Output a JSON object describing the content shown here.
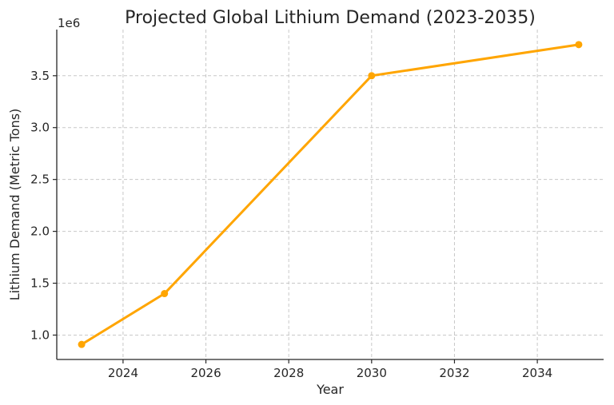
{
  "chart_data": {
    "type": "line",
    "title": "Projected Global Lithium Demand (2023-2035)",
    "xlabel": "Year",
    "ylabel": "Lithium Demand (Metric Tons)",
    "y_offset_label": "1e6",
    "x": [
      2023,
      2025,
      2030,
      2035
    ],
    "series": [
      {
        "values": [
          910000,
          1400000,
          3500000,
          3800000
        ]
      }
    ],
    "xlim": [
      2022.4,
      2035.6
    ],
    "ylim": [
      765000,
      3945000
    ],
    "x_ticks": [
      2024,
      2026,
      2028,
      2030,
      2032,
      2034
    ],
    "x_tick_labels": [
      "2024",
      "2026",
      "2028",
      "2030",
      "2032",
      "2034"
    ],
    "y_ticks": [
      1000000,
      1500000,
      2000000,
      2500000,
      3000000,
      3500000
    ],
    "y_tick_labels": [
      "1.0",
      "1.5",
      "2.0",
      "2.5",
      "3.0",
      "3.5"
    ],
    "grid": true,
    "line_color": "#FFA500",
    "marker": "circle"
  }
}
